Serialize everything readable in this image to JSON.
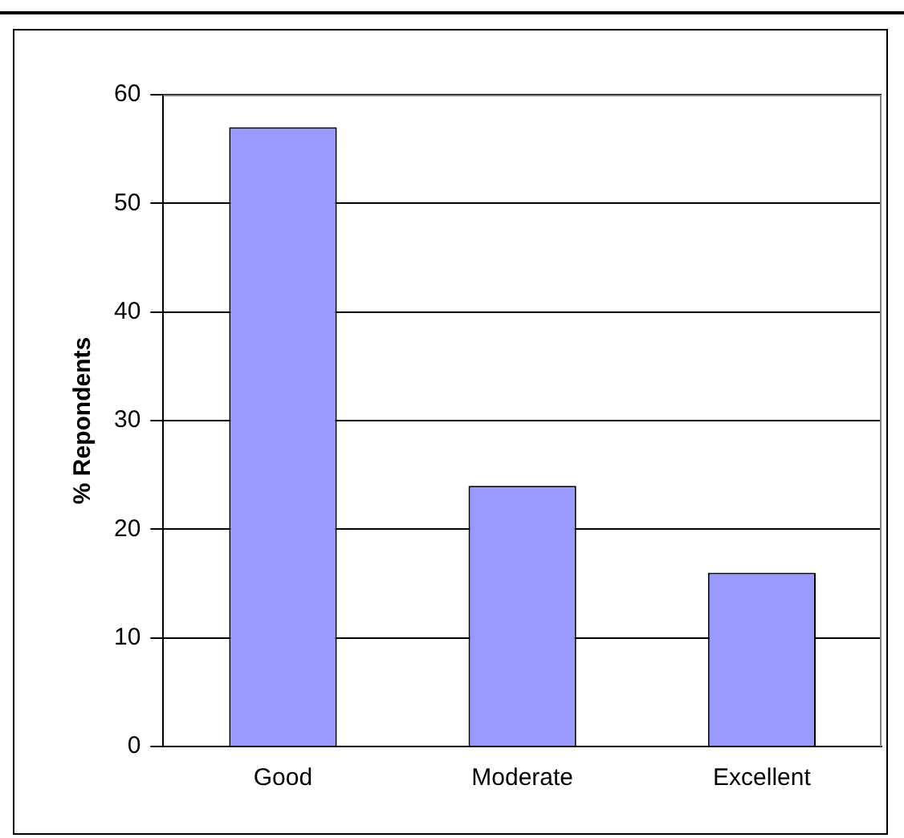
{
  "chart_data": {
    "type": "bar",
    "ylabel": "% Repondents",
    "categories": [
      "Good",
      "Moderate",
      "Excellent"
    ],
    "values": [
      57,
      24,
      16
    ],
    "color": "#9999ff",
    "ylim": [
      0,
      60
    ],
    "yticks": [
      0,
      10,
      20,
      30,
      40,
      50,
      60
    ],
    "grid": "y",
    "legend": false
  }
}
